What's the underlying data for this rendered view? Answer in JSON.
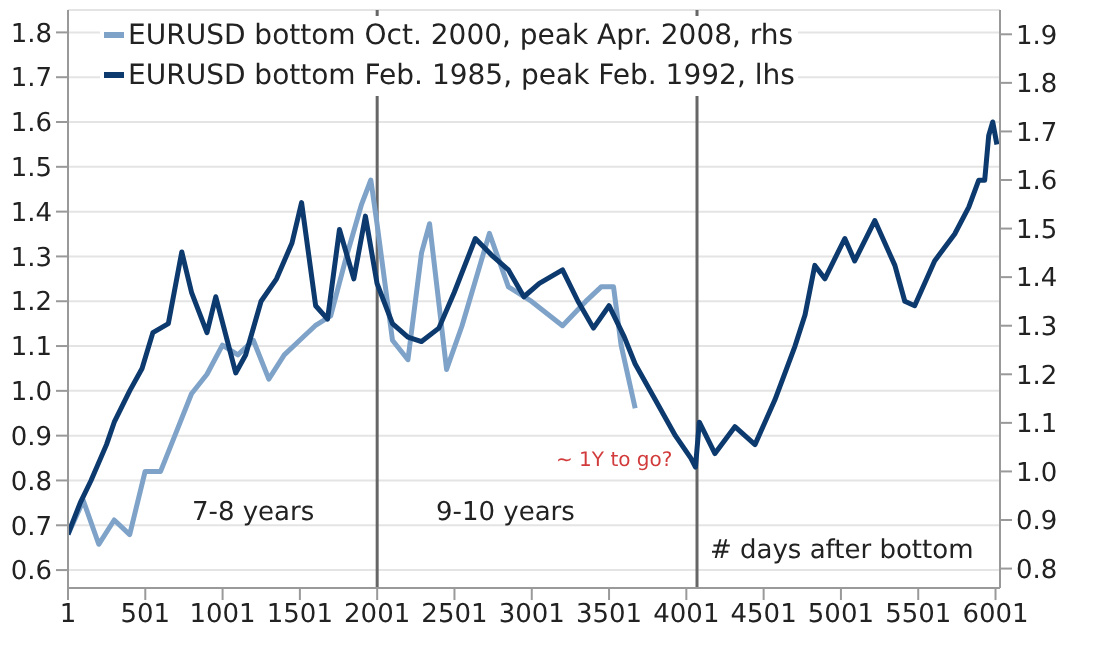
{
  "chart_data": {
    "type": "line",
    "series": [
      {
        "name": "EURUSD bottom Oct. 2000, peak Apr. 2008, rhs",
        "color": "#7fa3c8",
        "axis": "y2",
        "x": [
          1,
          100,
          200,
          300,
          400,
          500,
          600,
          700,
          800,
          900,
          1000,
          1100,
          1200,
          1300,
          1400,
          1500,
          1600,
          1700,
          1800,
          1900,
          1960,
          2000,
          2100,
          2200,
          2288,
          2340,
          2450,
          2550,
          2727,
          2850,
          3000,
          3200,
          3350,
          3450,
          3530,
          3579,
          3670
        ],
        "values": [
          0.87,
          0.94,
          0.85,
          0.9,
          0.87,
          1.0,
          1.0,
          1.08,
          1.16,
          1.2,
          1.26,
          1.24,
          1.27,
          1.19,
          1.24,
          1.27,
          1.3,
          1.32,
          1.44,
          1.55,
          1.6,
          1.51,
          1.27,
          1.23,
          1.45,
          1.51,
          1.21,
          1.3,
          1.49,
          1.38,
          1.35,
          1.3,
          1.35,
          1.38,
          1.38,
          1.26,
          1.13
        ]
      },
      {
        "name": "EURUSD bottom Feb. 1985, peak Feb. 1992, lhs",
        "color": "#0d3a6e",
        "x": [
          1,
          80,
          150,
          250,
          300,
          400,
          480,
          550,
          650,
          737,
          800,
          900,
          957,
          1086,
          1150,
          1250,
          1350,
          1450,
          1512,
          1603,
          1680,
          1757,
          1850,
          1925,
          2000,
          2100,
          2200,
          2288,
          2400,
          2500,
          2636,
          2750,
          2850,
          2950,
          3050,
          3200,
          3300,
          3400,
          3501,
          3600,
          3670,
          3800,
          3930,
          4030,
          4060,
          4085,
          4186,
          4315,
          4445,
          4574,
          4704,
          4769,
          4832,
          4897,
          5026,
          5090,
          5220,
          5350,
          5414,
          5478,
          5607,
          5737,
          5828,
          5892,
          5931,
          5957,
          5983,
          6010
        ],
        "values": [
          0.68,
          0.75,
          0.8,
          0.88,
          0.93,
          1.0,
          1.05,
          1.13,
          1.15,
          1.31,
          1.22,
          1.13,
          1.21,
          1.04,
          1.08,
          1.2,
          1.25,
          1.33,
          1.42,
          1.19,
          1.16,
          1.36,
          1.25,
          1.39,
          1.24,
          1.15,
          1.12,
          1.11,
          1.14,
          1.22,
          1.34,
          1.3,
          1.27,
          1.21,
          1.24,
          1.27,
          1.2,
          1.14,
          1.19,
          1.12,
          1.06,
          0.98,
          0.9,
          0.85,
          0.83,
          0.93,
          0.86,
          0.92,
          0.88,
          0.98,
          1.1,
          1.17,
          1.28,
          1.25,
          1.34,
          1.29,
          1.38,
          1.28,
          1.2,
          1.19,
          1.29,
          1.35,
          1.41,
          1.47,
          1.47,
          1.57,
          1.6,
          1.55
        ]
      }
    ],
    "xlim": [
      1,
      6030
    ],
    "xticks": [
      1,
      501,
      1001,
      1501,
      2001,
      2501,
      3001,
      3501,
      4001,
      4501,
      5001,
      5501,
      6001
    ],
    "ylim": [
      0.56,
      1.85
    ],
    "yticks": [
      0.6,
      0.7,
      0.8,
      0.9,
      {
        "value": 1,
        "label": "1.0"
      },
      1.1,
      1.2,
      1.3,
      1.4,
      1.5,
      1.6,
      1.7,
      1.8
    ],
    "y2lim": [
      0.76,
      1.95
    ],
    "y2ticks": [
      0.8,
      0.9,
      {
        "value": 1,
        "label": "1.0"
      },
      1.1,
      1.2,
      1.3,
      1.4,
      1.5,
      1.6,
      1.7,
      1.8,
      1.9
    ],
    "ref_lines": [
      {
        "axis": "x",
        "value": 2001,
        "color": "#666666"
      },
      {
        "axis": "x",
        "value": 4070,
        "color": "#666666"
      }
    ],
    "annotations": [
      "7-8 years",
      "9-10 years",
      "# days after bottom",
      "~ 1Y to go?"
    ],
    "grid": "y",
    "legend": "top left",
    "marker": "none",
    "line_style": "solid"
  }
}
